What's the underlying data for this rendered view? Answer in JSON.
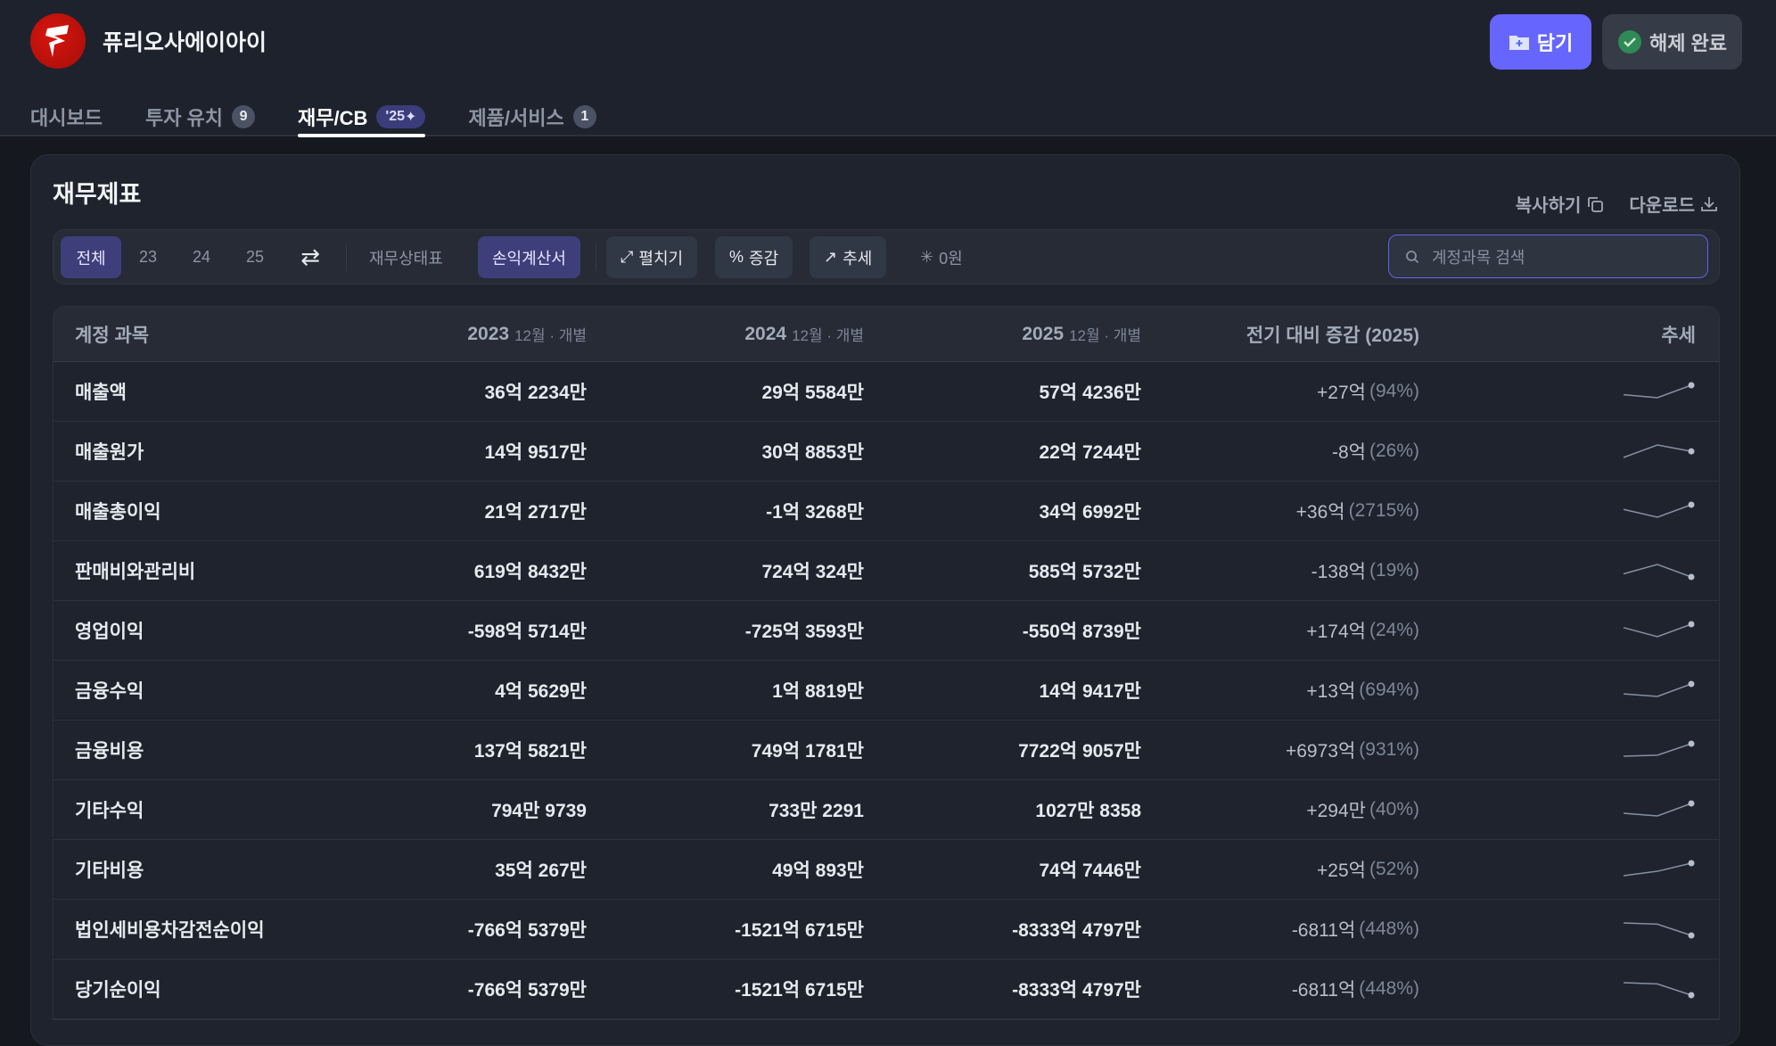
{
  "header": {
    "company": "퓨리오사에이아이",
    "add_button": "담기",
    "done_button": "해제 완료"
  },
  "tabs": [
    {
      "label": "대시보드"
    },
    {
      "label": "투자 유치",
      "badge": "9"
    },
    {
      "label": "재무/CB",
      "badge": "'25"
    },
    {
      "label": "제품/서비스",
      "badge": "1"
    }
  ],
  "colors": {
    "accent": "#6666ff",
    "selected": "#3e3f7a",
    "success": "#2f8a55",
    "logo": "#c8120c"
  },
  "card": {
    "title": "재무제표",
    "copy": "복사하기",
    "download": "다운로드"
  },
  "toolbar": {
    "all": "전체",
    "y23": "23",
    "y24": "24",
    "y25": "25",
    "balance": "재무상태표",
    "income": "손익계산서",
    "expand": "펼치기",
    "change": "증감",
    "trend": "추세",
    "zero": "0원",
    "search_placeholder": "계정과목 검색",
    "selected_period": "전체",
    "selected_statement": "손익계산서"
  },
  "table": {
    "headers": {
      "account": "계정 과목",
      "y2023": "2023",
      "y2024": "2024",
      "y2025": "2025",
      "sub": "12월 · 개별",
      "change": "전기 대비 증감 (2025)",
      "trend": "추세"
    },
    "rows": [
      {
        "name": "매출액",
        "v2023": "36억 2234만",
        "v2024": "29억 5584만",
        "v2025": "57억 4236만",
        "chg": "+27억",
        "pct": "(94%)",
        "trend": [
          36.2234,
          29.5584,
          57.4236
        ]
      },
      {
        "name": "매출원가",
        "v2023": "14억 9517만",
        "v2024": "30억 8853만",
        "v2025": "22억 7244만",
        "chg": "-8억",
        "pct": "(26%)",
        "trend": [
          14.9517,
          30.8853,
          22.7244
        ]
      },
      {
        "name": "매출총이익",
        "v2023": "21억 2717만",
        "v2024": "-1억 3268만",
        "v2025": "34억 6992만",
        "chg": "+36억",
        "pct": "(2715%)",
        "trend": [
          21.2717,
          -1.3268,
          34.6992
        ]
      },
      {
        "name": "판매비와관리비",
        "v2023": "619억 8432만",
        "v2024": "724억 324만",
        "v2025": "585억 5732만",
        "chg": "-138억",
        "pct": "(19%)",
        "trend": [
          619.8432,
          724.0324,
          585.5732
        ]
      },
      {
        "name": "영업이익",
        "v2023": "-598억 5714만",
        "v2024": "-725억 3593만",
        "v2025": "-550억 8739만",
        "chg": "+174억",
        "pct": "(24%)",
        "trend": [
          -598.5714,
          -725.3593,
          -550.8739
        ]
      },
      {
        "name": "금융수익",
        "v2023": "4억 5629만",
        "v2024": "1억 8819만",
        "v2025": "14억 9417만",
        "chg": "+13억",
        "pct": "(694%)",
        "trend": [
          4.5629,
          1.8819,
          14.9417
        ]
      },
      {
        "name": "금융비용",
        "v2023": "137억 5821만",
        "v2024": "749억 1781만",
        "v2025": "7722억 9057만",
        "chg": "+6973억",
        "pct": "(931%)",
        "trend": [
          137.5821,
          749.1781,
          7722.9057
        ]
      },
      {
        "name": "기타수익",
        "v2023": "794만 9739",
        "v2024": "733만 2291",
        "v2025": "1027만 8358",
        "chg": "+294만",
        "pct": "(40%)",
        "trend": [
          0.0795,
          0.0733,
          0.1028
        ]
      },
      {
        "name": "기타비용",
        "v2023": "35억 267만",
        "v2024": "49억 893만",
        "v2025": "74억 7446만",
        "chg": "+25억",
        "pct": "(52%)",
        "trend": [
          35.0267,
          49.0893,
          74.7446
        ]
      },
      {
        "name": "법인세비용차감전순이익",
        "v2023": "-766억 5379만",
        "v2024": "-1521억 6715만",
        "v2025": "-8333억 4797만",
        "chg": "-6811억",
        "pct": "(448%)",
        "trend": [
          -766.5379,
          -1521.6715,
          -8333.4797
        ]
      },
      {
        "name": "당기순이익",
        "v2023": "-766억 5379만",
        "v2024": "-1521억 6715만",
        "v2025": "-8333억 4797만",
        "chg": "-6811억",
        "pct": "(448%)",
        "trend": [
          -766.5379,
          -1521.6715,
          -8333.4797
        ]
      }
    ]
  }
}
